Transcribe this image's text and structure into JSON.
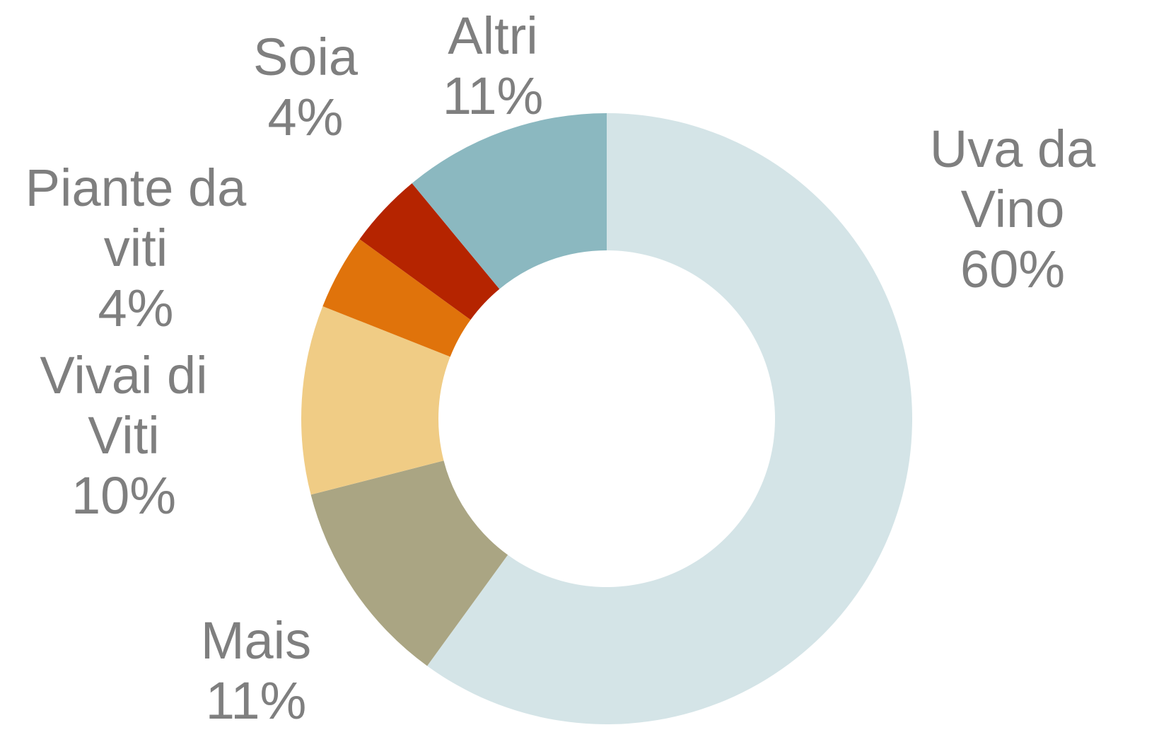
{
  "chart_data": {
    "type": "donut",
    "categories": [
      "Uva da Vino",
      "Mais",
      "Vivai di Viti",
      "Piante da viti",
      "Soia",
      "Altri"
    ],
    "values": [
      60,
      11,
      10,
      4,
      4,
      11
    ],
    "value_labels": [
      "60%",
      "11%",
      "10%",
      "4%",
      "4%",
      "11%"
    ],
    "colors": [
      "#d4e4e7",
      "#aaa583",
      "#f0cc85",
      "#e0730b",
      "#b52400",
      "#8bb8c0"
    ]
  }
}
